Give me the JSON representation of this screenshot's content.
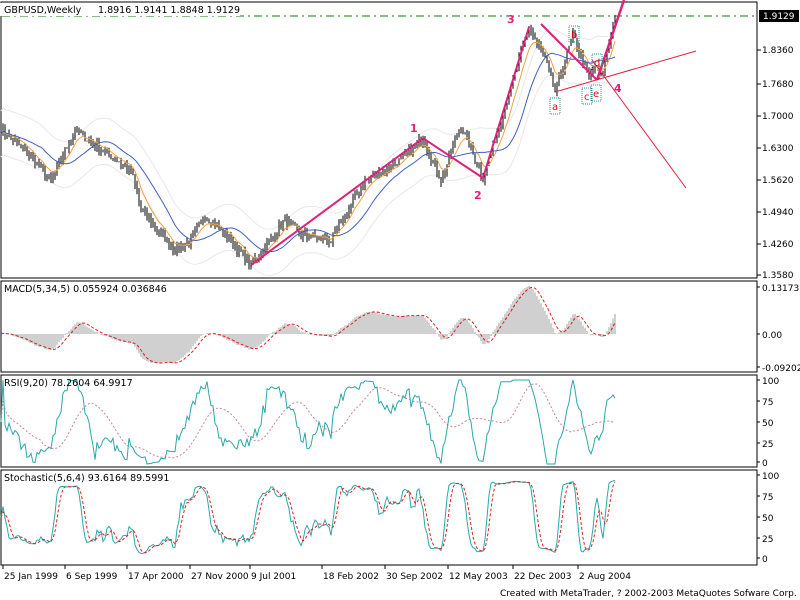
{
  "header": {
    "symbol_period": "GBPUSD,Weekly",
    "ohlc": "1.8916 1.9141 1.8848 1.9129"
  },
  "price_axis": {
    "current": "1.9129",
    "ticks": [
      "1.8360",
      "1.7680",
      "1.7000",
      "1.6300",
      "1.5620",
      "1.4940",
      "1.4260",
      "1.3580"
    ]
  },
  "indicators": {
    "macd": {
      "label": "MACD(5,34,5)  0.055924  0.036846",
      "ticks": [
        "0.13173",
        "0.00",
        "-0.09202"
      ]
    },
    "rsi": {
      "label": "RSI(9,20)  78.2604  64.9917",
      "ticks": [
        "100",
        "75",
        "50",
        "25",
        "0"
      ]
    },
    "stoch": {
      "label": "Stochastic(5,6,4)  93.6164  89.5991",
      "ticks": [
        "100",
        "75",
        "50",
        "25",
        "0"
      ]
    }
  },
  "date_axis": [
    "25 Jan 1999",
    "6 Sep 1999",
    "17 Apr 2000",
    "27 Nov 2000",
    "9 Jul 2001",
    "18 Feb 2002",
    "30 Sep 2002",
    "12 May 2003",
    "22 Dec 2003",
    "2 Aug 2004"
  ],
  "footer": "Created with MetaTrader, ? 2002-2003 MetaQuotes Sofware Corp.",
  "colors": {
    "bars": "#000000",
    "wave": "#e0207a",
    "trend": "#e02040",
    "ma_fast": "#f0a040",
    "ma_slow": "#4060c0",
    "rsi": "#2aa8a8",
    "signal": "#e02020",
    "level": "#008000"
  },
  "chart_data": {
    "type": "line",
    "title": "GBPUSD,Weekly",
    "ylim": [
      1.358,
      1.9129
    ],
    "x_unit": "weeks since 25 Jan 1999",
    "price_path": [
      [
        0,
        1.667
      ],
      [
        12,
        1.624
      ],
      [
        25,
        1.558
      ],
      [
        37,
        1.667
      ],
      [
        47,
        1.634
      ],
      [
        65,
        1.58
      ],
      [
        70,
        1.494
      ],
      [
        87,
        1.407
      ],
      [
        95,
        1.429
      ],
      [
        102,
        1.483
      ],
      [
        115,
        1.429
      ],
      [
        125,
        1.375
      ],
      [
        142,
        1.472
      ],
      [
        150,
        1.44
      ],
      [
        165,
        1.429
      ],
      [
        182,
        1.558
      ],
      [
        200,
        1.602
      ],
      [
        211,
        1.649
      ],
      [
        220,
        1.558
      ],
      [
        230,
        1.677
      ],
      [
        241,
        1.563
      ],
      [
        250,
        1.688
      ],
      [
        264,
        1.889
      ],
      [
        272,
        1.818
      ],
      [
        277,
        1.749
      ],
      [
        286,
        1.872
      ],
      [
        294,
        1.779
      ],
      [
        297,
        1.808
      ],
      [
        300,
        1.776
      ],
      [
        307,
        1.9129
      ]
    ],
    "wave_labels": [
      {
        "label": "1",
        "week": 211,
        "price": 1.649
      },
      {
        "label": "2",
        "week": 241,
        "price": 1.563
      },
      {
        "label": "3",
        "week": 264,
        "price": 1.889
      },
      {
        "label": "4",
        "week": 300,
        "price": 1.776
      }
    ],
    "correction_labels": [
      {
        "label": "a",
        "week": 277,
        "price": 1.749
      },
      {
        "label": "b",
        "week": 286,
        "price": 1.872
      },
      {
        "label": "c",
        "week": 294,
        "price": 1.779
      },
      {
        "label": "d",
        "week": 297,
        "price": 1.808
      },
      {
        "label": "e",
        "week": 300,
        "price": 1.776
      }
    ],
    "resistance_level": 1.9129
  }
}
